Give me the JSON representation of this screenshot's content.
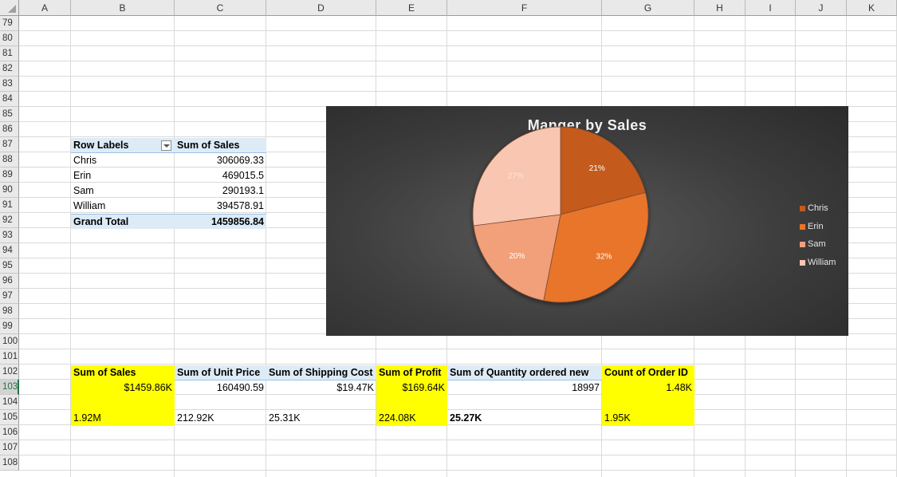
{
  "columns": [
    "A",
    "B",
    "C",
    "D",
    "E",
    "F",
    "G",
    "H",
    "I",
    "J",
    "K"
  ],
  "rows": [
    "79",
    "80",
    "81",
    "82",
    "83",
    "84",
    "85",
    "86",
    "87",
    "88",
    "89",
    "90",
    "91",
    "92",
    "93",
    "94",
    "95",
    "96",
    "97",
    "98",
    "99",
    "100",
    "101",
    "102",
    "103",
    "104",
    "105",
    "106",
    "107",
    "108"
  ],
  "selected_row": "103",
  "pivot": {
    "header_row_labels": "Row Labels",
    "header_sum_of_sales": "Sum of Sales",
    "rows": [
      {
        "label": "Chris",
        "value": "306069.33"
      },
      {
        "label": "Erin",
        "value": "469015.5"
      },
      {
        "label": "Sam",
        "value": "290193.1"
      },
      {
        "label": "William",
        "value": "394578.91"
      }
    ],
    "grand_total_label": "Grand Total",
    "grand_total_value": "1459856.84"
  },
  "summary": {
    "headers": [
      "Sum of Sales",
      "Sum of Unit Price",
      "Sum of Shipping Cost",
      "Sum of Profit",
      "Sum of Quantity ordered new",
      "Count of Order ID"
    ],
    "values_row": [
      "$1459.86K",
      "160490.59",
      "$19.47K",
      "$169.64K",
      "18997",
      "1.48K"
    ],
    "totals_row": [
      "1.92M",
      "212.92K",
      "25.31K",
      "224.08K",
      "25.27K",
      "1.95K"
    ]
  },
  "chart_data": {
    "type": "pie",
    "title": "Manger by Sales",
    "categories": [
      "Chris",
      "Erin",
      "Sam",
      "William"
    ],
    "values": [
      306069.33,
      469015.5,
      290193.1,
      394578.91
    ],
    "data_labels": [
      "21%",
      "32%",
      "20%",
      "27%"
    ],
    "colors": [
      "#c45a1e",
      "#e8742c",
      "#f1a07a",
      "#f8c6b1"
    ],
    "legend_position": "right",
    "background": "#3d3d3d"
  }
}
